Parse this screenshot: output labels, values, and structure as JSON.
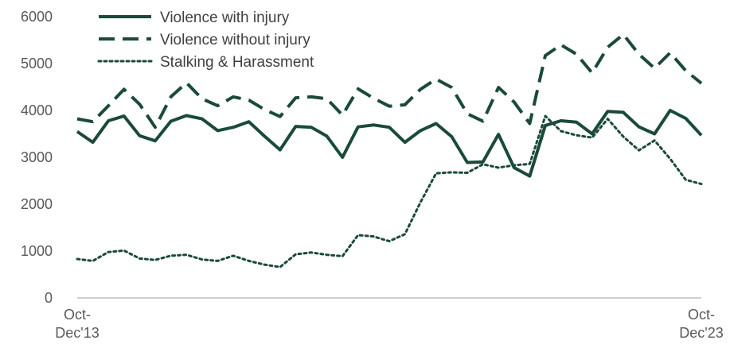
{
  "chart_data": {
    "type": "line",
    "title": "",
    "xlabel": "",
    "ylabel": "",
    "ylim": [
      0,
      6000
    ],
    "yticks": [
      0,
      1000,
      2000,
      3000,
      4000,
      5000,
      6000
    ],
    "x_tick_labels": [
      {
        "index": 0,
        "line1": "Oct-",
        "line2": "Dec'13"
      },
      {
        "index": 40,
        "line1": "Oct-",
        "line2": "Dec'23"
      }
    ],
    "grid": false,
    "legend_position": "top-left",
    "series": [
      {
        "name": "Violence with injury",
        "color": "#1a4a3a",
        "style": "solid",
        "values": [
          3550,
          3320,
          3780,
          3880,
          3460,
          3350,
          3770,
          3890,
          3820,
          3570,
          3640,
          3760,
          3450,
          3160,
          3660,
          3640,
          3450,
          3000,
          3650,
          3690,
          3640,
          3320,
          3570,
          3720,
          3440,
          2890,
          2900,
          3490,
          2780,
          2600,
          3680,
          3780,
          3750,
          3500,
          3980,
          3960,
          3650,
          3500,
          4000,
          3830,
          3470
        ]
      },
      {
        "name": "Violence without injury",
        "color": "#1a4a3a",
        "style": "dashed",
        "values": [
          3820,
          3760,
          4100,
          4450,
          4130,
          3640,
          4290,
          4590,
          4250,
          4100,
          4290,
          4220,
          4020,
          3870,
          4270,
          4290,
          4250,
          3900,
          4460,
          4260,
          4090,
          4120,
          4450,
          4670,
          4490,
          3930,
          3770,
          4490,
          4180,
          3720,
          5170,
          5400,
          5200,
          4800,
          5350,
          5620,
          5200,
          4900,
          5230,
          4850,
          4580
        ]
      },
      {
        "name": "Stalking & Harassment",
        "color": "#1a4a3a",
        "style": "dotted",
        "values": [
          830,
          790,
          980,
          1010,
          840,
          810,
          900,
          920,
          820,
          790,
          900,
          790,
          710,
          660,
          930,
          970,
          920,
          890,
          1340,
          1310,
          1210,
          1360,
          2040,
          2660,
          2680,
          2670,
          2850,
          2780,
          2830,
          2860,
          3880,
          3560,
          3470,
          3420,
          3820,
          3440,
          3150,
          3360,
          2970,
          2520,
          2430
        ]
      }
    ]
  }
}
